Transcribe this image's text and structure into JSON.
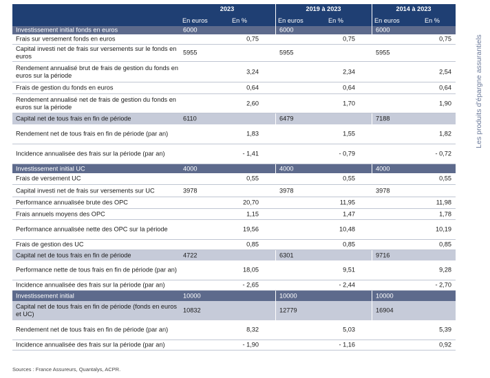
{
  "header": {
    "periods": [
      "2023",
      "2019 à 2023",
      "2014 à 2023"
    ],
    "col_euros": "En euros",
    "col_pct": "En %"
  },
  "rows": [
    {
      "label": "Investissement initial fonds en euros",
      "style": "dark",
      "h": 12,
      "vals": [
        [
          "6000",
          ""
        ],
        [
          "6000",
          ""
        ],
        [
          "6000",
          ""
        ]
      ]
    },
    {
      "label": "Frais sur versement fonds en euros",
      "style": "plain",
      "h": 14,
      "vals": [
        [
          "",
          "0,75"
        ],
        [
          "",
          "0,75"
        ],
        [
          "",
          "0,75"
        ]
      ]
    },
    {
      "label": "Capital investi net de frais sur versements sur le fonds en euros",
      "style": "plain",
      "h": 24,
      "vals": [
        [
          "5955",
          ""
        ],
        [
          "5955",
          ""
        ],
        [
          "5955",
          ""
        ]
      ]
    },
    {
      "label": "Rendement annualisé brut de frais de gestion du fonds en euros sur la période",
      "style": "plain",
      "h": 29,
      "vals": [
        [
          "",
          "3,24"
        ],
        [
          "",
          "2,34"
        ],
        [
          "",
          "2,54"
        ]
      ]
    },
    {
      "label": "Frais de gestion du fonds en euros",
      "style": "plain",
      "h": 16,
      "vals": [
        [
          "",
          "0,64"
        ],
        [
          "",
          "0,64"
        ],
        [
          "",
          "0,64"
        ]
      ]
    },
    {
      "label": "Rendement annualisé net de frais de gestion du fonds en euros sur la période",
      "style": "plain",
      "h": 27,
      "vals": [
        [
          "",
          "2,60"
        ],
        [
          "",
          "1,70"
        ],
        [
          "",
          "1,90"
        ]
      ]
    },
    {
      "label": "Capital net de tous frais en fin de période",
      "style": "light",
      "h": 16,
      "vals": [
        [
          "6110",
          ""
        ],
        [
          "6479",
          ""
        ],
        [
          "7188",
          ""
        ]
      ]
    },
    {
      "label": "Rendement net de tous frais en fin de période (par an)",
      "style": "plain",
      "h": 28,
      "vals": [
        [
          "",
          "1,83"
        ],
        [
          "",
          "1,55"
        ],
        [
          "",
          "1,82"
        ]
      ]
    },
    {
      "label": "Incidence annualisée des frais sur la période (par an)",
      "style": "plain",
      "h": 28,
      "vals": [
        [
          "",
          "- 1,41"
        ],
        [
          "",
          "- 0,79"
        ],
        [
          "",
          "- 0,72"
        ]
      ]
    },
    {
      "label": "Investissement initial UC",
      "style": "dark",
      "h": 13,
      "vals": [
        [
          "4000",
          ""
        ],
        [
          "4000",
          ""
        ],
        [
          "4000",
          ""
        ]
      ]
    },
    {
      "label": "Frais de versement UC",
      "style": "plain",
      "h": 16,
      "vals": [
        [
          "",
          "0,55"
        ],
        [
          "",
          "0,55"
        ],
        [
          "",
          "0,55"
        ]
      ]
    },
    {
      "label": "Capital investi net de frais sur versements sur UC",
      "style": "plain",
      "h": 17,
      "vals": [
        [
          "3978",
          ""
        ],
        [
          "3978",
          ""
        ],
        [
          "3978",
          ""
        ]
      ]
    },
    {
      "label": "Performance annualisée brute des OPC",
      "style": "plain",
      "h": 16,
      "vals": [
        [
          "",
          "20,70"
        ],
        [
          "",
          "11,95"
        ],
        [
          "",
          "11,98"
        ]
      ]
    },
    {
      "label": "Frais annuels moyens des OPC",
      "style": "plain",
      "h": 15,
      "vals": [
        [
          "",
          "1,15"
        ],
        [
          "",
          "1,47"
        ],
        [
          "",
          "1,78"
        ]
      ]
    },
    {
      "label": "Performance annualisée nette des OPC sur la période",
      "style": "plain",
      "h": 28,
      "vals": [
        [
          "",
          "19,56"
        ],
        [
          "",
          "10,48"
        ],
        [
          "",
          "10,19"
        ]
      ]
    },
    {
      "label": "Frais de gestion des UC",
      "style": "plain",
      "h": 14,
      "vals": [
        [
          "",
          "0,85"
        ],
        [
          "",
          "0,85"
        ],
        [
          "",
          "0,85"
        ]
      ]
    },
    {
      "label": "Capital net de tous frais en fin de période",
      "style": "light",
      "h": 15,
      "vals": [
        [
          "4722",
          ""
        ],
        [
          "6301",
          ""
        ],
        [
          "9716",
          ""
        ]
      ]
    },
    {
      "label": "Performance nette de tous frais en fin de période (par an)",
      "style": "plain",
      "h": 28,
      "vals": [
        [
          "",
          "18,05"
        ],
        [
          "",
          "9,51"
        ],
        [
          "",
          "9,28"
        ]
      ]
    },
    {
      "label": "Incidence annualisée des frais sur la période (par an)",
      "style": "plain",
      "h": 14,
      "vals": [
        [
          "",
          "- 2,65"
        ],
        [
          "",
          "- 2,44"
        ],
        [
          "",
          "- 2,70"
        ]
      ]
    },
    {
      "label": "Investissement initial",
      "style": "dark",
      "h": 15,
      "vals": [
        [
          "10000",
          ""
        ],
        [
          "10000",
          ""
        ],
        [
          "10000",
          ""
        ]
      ]
    },
    {
      "label": "Capital net de tous frais en fin de période (fonds en euros et UC)",
      "style": "light",
      "h": 28,
      "vals": [
        [
          "10832",
          ""
        ],
        [
          "12779",
          ""
        ],
        [
          "16904",
          ""
        ]
      ]
    },
    {
      "label": "Rendement net de tous frais en fin de période (par an)",
      "style": "plain",
      "h": 28,
      "vals": [
        [
          "",
          "8,32"
        ],
        [
          "",
          "5,03"
        ],
        [
          "",
          "5,39"
        ]
      ]
    },
    {
      "label": "Incidence annualisée des frais sur la période (par an)",
      "style": "plain",
      "h": 14,
      "vals": [
        [
          "",
          "- 1,90"
        ],
        [
          "",
          "- 1,16"
        ],
        [
          "",
          "0,92"
        ]
      ]
    }
  ],
  "sources": "Sources : France Assureurs, Quantalys, ACPR.",
  "side_title": "Les produits d'épargne assurantiels",
  "colors": {
    "header": "#1f3f73",
    "dark": "#5d6a8c",
    "light": "#c6cbd9",
    "side": "#6b7a9a"
  }
}
